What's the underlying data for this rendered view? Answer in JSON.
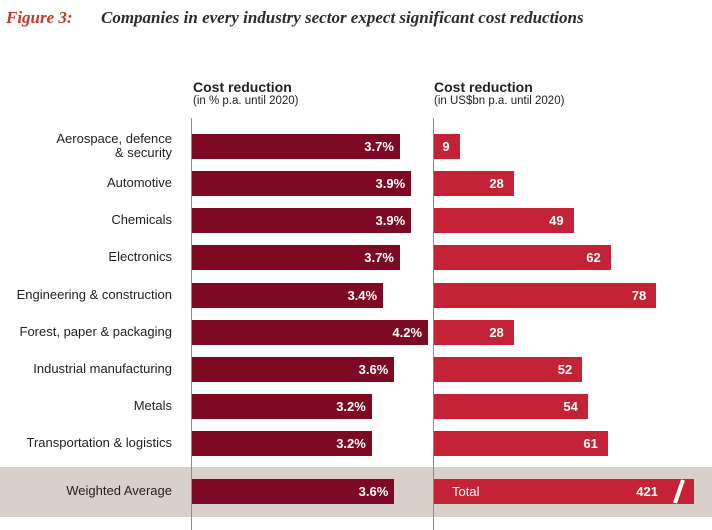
{
  "figure": {
    "label": "Figure 3:",
    "title": "Companies in every industry sector expect significant cost reductions"
  },
  "panels": {
    "left": {
      "heading": "Cost reduction",
      "subheading": "(in % p.a. until 2020)"
    },
    "right": {
      "heading": "Cost reduction",
      "subheading": "(in US$bn p.a. until 2020)"
    }
  },
  "total_label": "Total",
  "colors": {
    "left_bars": "#7d0a22",
    "right_bars": "#c42235",
    "average_band": "#d9d0c9",
    "title_label": "#c0392b"
  },
  "chart_data": [
    {
      "type": "bar",
      "orientation": "horizontal",
      "title": "Cost reduction",
      "subtitle": "(in % p.a. until 2020)",
      "categories": [
        "Aerospace, defence & security",
        "Automotive",
        "Chemicals",
        "Electronics",
        "Engineering & construction",
        "Forest, paper & packaging",
        "Industrial manufacturing",
        "Metals",
        "Transportation & logistics",
        "Weighted Average"
      ],
      "values": [
        3.7,
        3.9,
        3.9,
        3.7,
        3.4,
        4.2,
        3.6,
        3.2,
        3.2,
        3.6
      ],
      "value_labels": [
        "3.7%",
        "3.9%",
        "3.9%",
        "3.7%",
        "3.4%",
        "4.2%",
        "3.6%",
        "3.2%",
        "3.2%",
        "3.6%"
      ],
      "xlim": [
        0,
        4.3
      ]
    },
    {
      "type": "bar",
      "orientation": "horizontal",
      "title": "Cost reduction",
      "subtitle": "(in US$bn p.a. until 2020)",
      "categories": [
        "Aerospace, defence & security",
        "Automotive",
        "Chemicals",
        "Electronics",
        "Engineering & construction",
        "Forest, paper & packaging",
        "Industrial manufacturing",
        "Metals",
        "Transportation & logistics",
        "Total"
      ],
      "values": [
        9,
        28,
        49,
        62,
        78,
        28,
        52,
        54,
        61,
        421
      ],
      "value_labels": [
        "9",
        "28",
        "49",
        "62",
        "78",
        "28",
        "52",
        "54",
        "61",
        "421"
      ],
      "xlim": [
        0,
        80
      ],
      "note": "Total bar is shown with an axis break"
    }
  ]
}
